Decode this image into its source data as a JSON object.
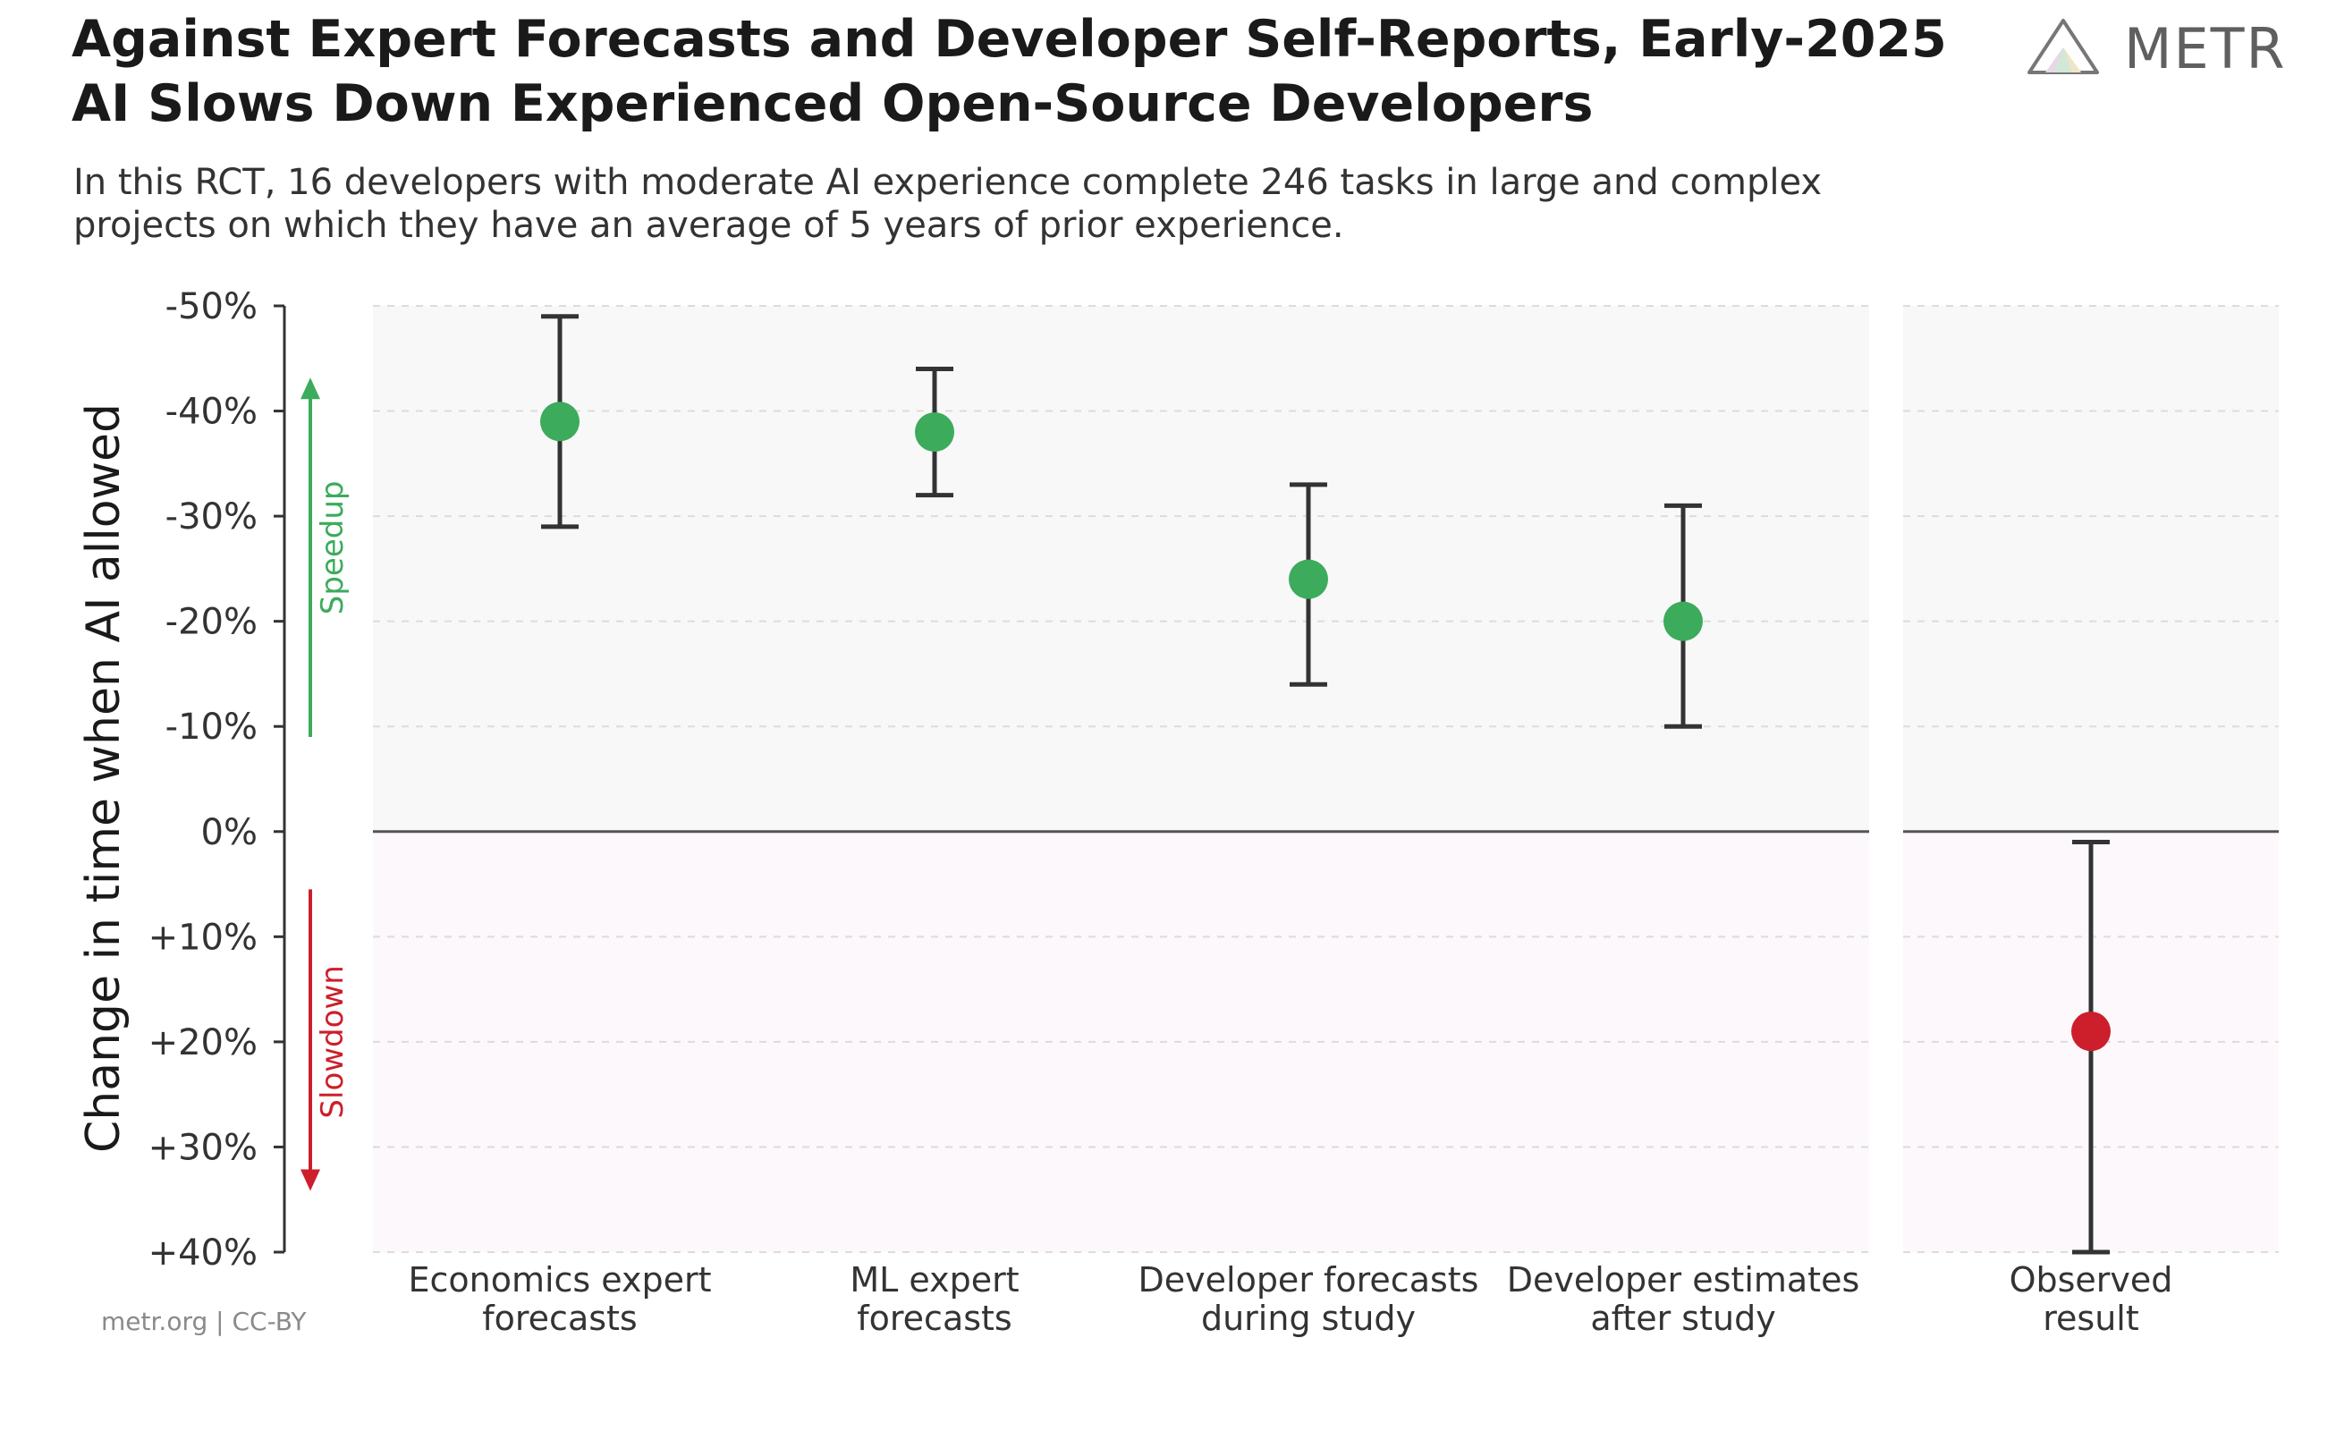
{
  "header": {
    "title_line1": "Against Expert Forecasts and Developer Self-Reports, Early-2025",
    "title_line2": "AI Slows Down Experienced Open-Source Developers",
    "subtitle_line1": "In this RCT, 16 developers with moderate AI experience complete 246 tasks in large and complex",
    "subtitle_line2": "projects on which they have an average of 5 years of prior experience."
  },
  "logo": {
    "text": "METR",
    "icon": "metr-logo-icon"
  },
  "footer": {
    "credit": "metr.org  |  CC-BY"
  },
  "colors": {
    "speedup": "#3cab5c",
    "slowdown": "#cc1f2b",
    "errorbar": "#333333",
    "speedup_bg": "#f8f8f8",
    "slowdown_bg": "#fcf8fc"
  },
  "chart_data": {
    "type": "scatter",
    "ylabel": "Change in time when AI allowed",
    "ylim": [
      -50,
      40
    ],
    "y_inverted": true,
    "yticks": [
      -50,
      -40,
      -30,
      -20,
      -10,
      0,
      10,
      20,
      30,
      40
    ],
    "ytick_labels": [
      "-50%",
      "-40%",
      "-30%",
      "-20%",
      "-10%",
      "0%",
      "+10%",
      "+20%",
      "+30%",
      "+40%"
    ],
    "grid": "horizontal-dashed",
    "direction_labels": {
      "speedup": "Speedup",
      "slowdown": "Slowdown"
    },
    "points": [
      {
        "label_line1": "Economics expert",
        "label_line2": "forecasts",
        "value": -39,
        "low": -49,
        "high": -29,
        "group": "forecast"
      },
      {
        "label_line1": "ML expert",
        "label_line2": "forecasts",
        "value": -38,
        "low": -44,
        "high": -32,
        "group": "forecast"
      },
      {
        "label_line1": "Developer forecasts",
        "label_line2": "during study",
        "value": -24,
        "low": -33,
        "high": -14,
        "group": "forecast"
      },
      {
        "label_line1": "Developer estimates",
        "label_line2": "after study",
        "value": -20,
        "low": -31,
        "high": -10,
        "group": "forecast"
      },
      {
        "label_line1": "Observed",
        "label_line2": "result",
        "value": 19,
        "low": 1,
        "high": 40,
        "group": "observed"
      }
    ]
  }
}
